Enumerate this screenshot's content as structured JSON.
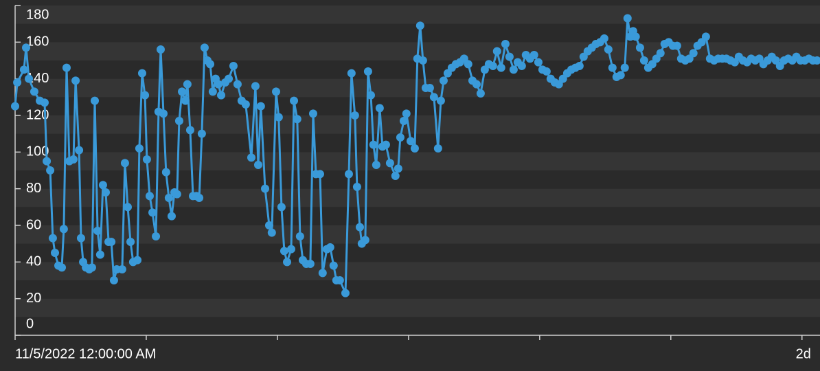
{
  "chart_data": {
    "type": "line",
    "color": "#3a9ad9",
    "x": [
      0,
      0.13,
      0.54,
      0.67,
      0.84,
      1.17,
      1.51,
      1.8,
      1.93,
      2.14,
      2.3,
      2.43,
      2.64,
      2.85,
      2.97,
      3.14,
      3.31,
      3.56,
      3.69,
      3.9,
      4.02,
      4.15,
      4.32,
      4.52,
      4.69,
      4.86,
      5.03,
      5.19,
      5.36,
      5.53,
      5.7,
      5.87,
      6.03,
      6.2,
      6.53,
      6.7,
      6.87,
      7.04,
      7.2,
      7.46,
      7.58,
      7.75,
      7.92,
      8.04,
      8.21,
      8.38,
      8.59,
      8.75,
      8.88,
      9.05,
      9.21,
      9.38,
      9.55,
      9.72,
      9.88,
      10.01,
      10.18,
      10.39,
      10.51,
      10.68,
      10.85,
      11.06,
      11.23,
      11.39,
      11.56,
      11.73,
      11.9,
      12.06,
      12.23,
      12.4,
      12.57,
      12.82,
      13.03,
      13.32,
      13.57,
      13.82,
      14.07,
      14.41,
      14.66,
      14.83,
      14.99,
      15.25,
      15.5,
      15.66,
      15.92,
      16.08,
      16.25,
      16.42,
      16.59,
      16.84,
      17.01,
      17.21,
      17.38,
      17.55,
      17.76,
      18.01,
      18.18,
      18.35,
      18.6,
      18.76,
      19.02,
      19.22,
      19.43,
      19.6,
      19.81,
      20.15,
      20.36,
      20.52,
      20.73,
      20.86,
      21.03,
      21.15,
      21.36,
      21.53,
      21.7,
      21.86,
      22.03,
      22.24,
      22.41,
      22.62,
      22.87,
      23.2,
      23.37,
      23.5,
      23.71,
      23.87,
      24.13,
      24.38,
      24.54,
      24.71,
      24.88,
      25.05,
      25.3,
      25.55,
      25.8,
      25.97,
      26.14,
      26.39,
      26.64,
      26.89,
      27.14,
      27.39,
      27.64,
      27.9,
      28.15,
      28.4,
      28.65,
      28.9,
      29.15,
      29.4,
      29.65,
      29.91,
      30.16,
      30.41,
      30.66,
      30.91,
      31.16,
      31.41,
      31.66,
      31.92,
      32.17,
      32.42,
      32.67,
      32.92,
      33.17,
      33.42,
      33.68,
      33.93,
      34.18,
      34.43,
      34.68,
      34.93,
      35.18,
      35.43,
      35.69,
      35.94,
      36.19,
      36.44,
      36.69,
      36.94,
      37.19,
      37.36,
      37.53,
      37.7,
      37.86,
      38.12,
      38.37,
      38.62,
      38.87,
      39.12,
      39.37,
      39.62,
      39.87,
      40.13,
      40.38,
      40.63,
      40.88,
      41.13,
      41.38,
      41.63,
      41.88,
      42.14,
      42.39,
      42.64,
      42.89,
      43.14,
      43.39,
      43.64,
      43.9,
      44.15,
      44.4,
      44.65,
      44.9,
      45.15,
      45.4,
      45.65,
      45.91,
      46.16,
      46.41,
      46.66,
      46.91,
      47.16,
      47.41,
      47.66,
      47.91,
      48.17,
      48.42,
      48.67,
      48.92
    ],
    "values": [
      125,
      138,
      145,
      157,
      140,
      133,
      128,
      127,
      95,
      90,
      53,
      45,
      38,
      37,
      58,
      146,
      95,
      96,
      139,
      101,
      53,
      40,
      37,
      36,
      37,
      128,
      57,
      44,
      82,
      78,
      51,
      51,
      30,
      36,
      36,
      94,
      70,
      51,
      40,
      41,
      102,
      143,
      131,
      96,
      76,
      67,
      54,
      122,
      156,
      121,
      89,
      75,
      65,
      78,
      77,
      117,
      133,
      128,
      137,
      112,
      76,
      76,
      75,
      110,
      157,
      150,
      148,
      133,
      140,
      137,
      131,
      138,
      140,
      147,
      137,
      128,
      126,
      97,
      136,
      93,
      125,
      80,
      60,
      56,
      133,
      119,
      70,
      46,
      40,
      47,
      128,
      118,
      54,
      41,
      39,
      39,
      121,
      88,
      88,
      34,
      47,
      48,
      38,
      30,
      30,
      23,
      88,
      143,
      120,
      81,
      59,
      50,
      52,
      144,
      131,
      104,
      93,
      124,
      103,
      104,
      94,
      87,
      91,
      108,
      117,
      121,
      106,
      102,
      151,
      169,
      150,
      135,
      135,
      130,
      102,
      128,
      139,
      143,
      146,
      148,
      149,
      151,
      148,
      139,
      137,
      132,
      145,
      148,
      147,
      155,
      146,
      159,
      152,
      145,
      149,
      147,
      153,
      151,
      153,
      149,
      145,
      144,
      140,
      138,
      137,
      140,
      143,
      145,
      146,
      147,
      152,
      155,
      157,
      159,
      160,
      162,
      156,
      146,
      141,
      142,
      146,
      173,
      163,
      166,
      163,
      157,
      150,
      146,
      148,
      151,
      154,
      159,
      160,
      158,
      158,
      151,
      150,
      151,
      154,
      158,
      160,
      163,
      151,
      150,
      151,
      151,
      151,
      150,
      149,
      152,
      150,
      149,
      151,
      150,
      151,
      148,
      150,
      152,
      150,
      147,
      150,
      151,
      150,
      152,
      150,
      150,
      151,
      150,
      150
    ],
    "xlim": [
      0,
      49.1
    ],
    "xticks": [
      {
        "value": 0,
        "label": "11/5/2022 12:00:00 AM"
      },
      {
        "value": 48,
        "label": "2d"
      }
    ],
    "minor_xticks": [
      8,
      16,
      24,
      32,
      40
    ],
    "ylim": [
      0,
      180
    ],
    "yticks": [
      0,
      20,
      40,
      60,
      80,
      100,
      120,
      140,
      160,
      180
    ]
  }
}
